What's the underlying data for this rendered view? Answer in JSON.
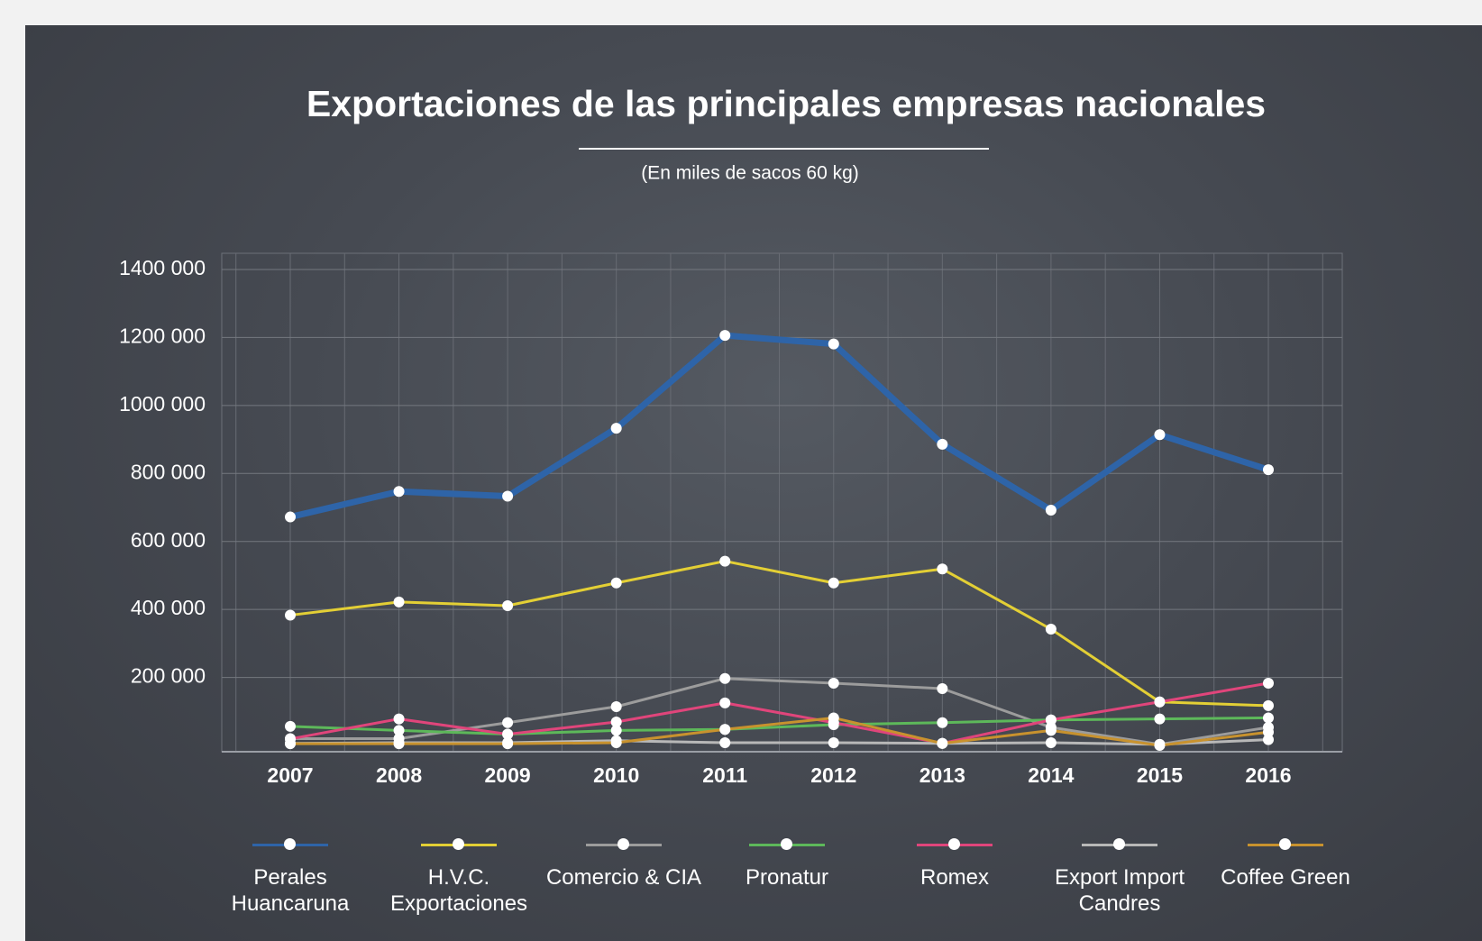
{
  "chart_data": {
    "type": "line",
    "title": "Exportaciones de las principales empresas nacionales",
    "subtitle": "(En miles de sacos 60 kg)",
    "categories": [
      "2007",
      "2008",
      "2009",
      "2010",
      "2011",
      "2012",
      "2013",
      "2014",
      "2015",
      "2016"
    ],
    "ylim": [
      0,
      1400000
    ],
    "yticks": [
      {
        "value": 200000,
        "label": "200 000"
      },
      {
        "value": 400000,
        "label": "400 000"
      },
      {
        "value": 600000,
        "label": "600 000"
      },
      {
        "value": 800000,
        "label": "800 000"
      },
      {
        "value": 1000000,
        "label": "1000 000"
      },
      {
        "value": 1200000,
        "label": "1200 000"
      },
      {
        "value": 1400000,
        "label": "1400 000"
      }
    ],
    "grid": true,
    "legend": "bottom",
    "series": [
      {
        "name": "Perales Huancaruna",
        "color": "#2e64a8",
        "values": [
          672000,
          747000,
          733000,
          933000,
          1206000,
          1181000,
          886000,
          692000,
          914000,
          811000
        ]
      },
      {
        "name": "H.V.C. Exportaciones",
        "color": "#e3cf35",
        "values": [
          383000,
          422000,
          411000,
          478000,
          542000,
          478000,
          519000,
          342000,
          128000,
          117000
        ]
      },
      {
        "name": "Comercio & CIA",
        "color": "#9c9c9c",
        "values": [
          20000,
          20000,
          67000,
          114000,
          197000,
          183000,
          167000,
          53000,
          3000,
          53000
        ]
      },
      {
        "name": "Pronatur",
        "color": "#5db85a",
        "values": [
          56000,
          44000,
          33000,
          44000,
          47000,
          61000,
          67000,
          75000,
          78000,
          81000
        ]
      },
      {
        "name": "Romex",
        "color": "#e0457b",
        "values": [
          19000,
          78000,
          33000,
          69000,
          125000,
          67000,
          6000,
          75000,
          128000,
          183000
        ]
      },
      {
        "name": "Export Import Candres",
        "color": "#b8b8b8",
        "values": [
          6000,
          8000,
          8000,
          14000,
          8000,
          8000,
          6000,
          8000,
          3000,
          17000
        ]
      },
      {
        "name": "Coffee Green",
        "color": "#c8922e",
        "values": [
          5000,
          5000,
          5000,
          8000,
          47000,
          81000,
          6000,
          44000,
          0,
          39000
        ]
      }
    ]
  }
}
